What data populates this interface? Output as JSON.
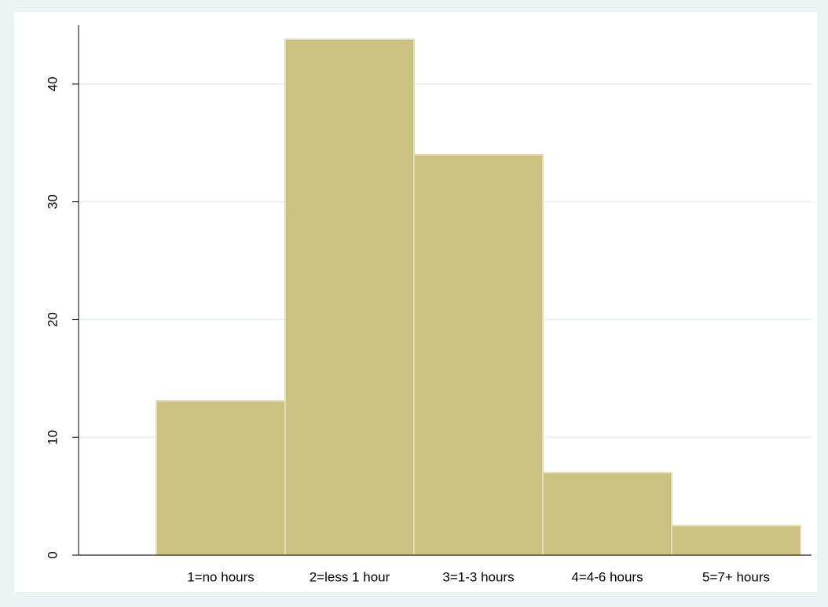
{
  "chart_data": {
    "type": "bar",
    "categories": [
      "1=no hours",
      "2=less 1 hour",
      "3=1-3 hours",
      "4=4-6 hours",
      "5=7+ hours"
    ],
    "values": [
      13.1,
      43.8,
      34.0,
      7.0,
      2.5
    ],
    "color": "#cbc282",
    "ylim": [
      0,
      45
    ],
    "yticks": [
      0,
      10,
      20,
      30,
      40
    ],
    "grid": true
  }
}
